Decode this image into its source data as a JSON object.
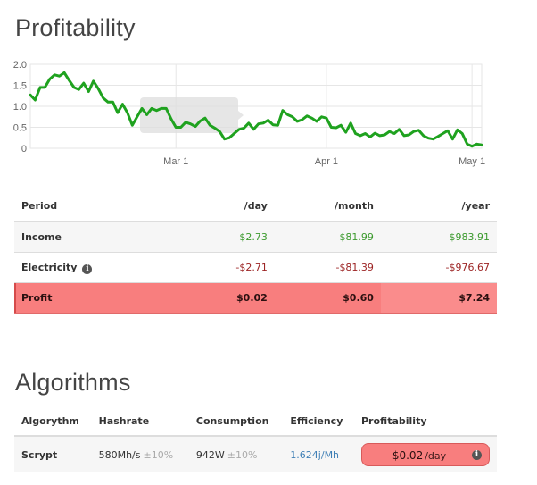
{
  "profitability": {
    "title": "Profitability",
    "chart_data": {
      "type": "line",
      "y_ticks": [
        "2.0",
        "1.5",
        "1.0",
        "0.5",
        "0"
      ],
      "ylim": [
        0,
        2.0
      ],
      "x_ticks": [
        "Mar 1",
        "Apr 1",
        "May 1"
      ],
      "x_tick_days": [
        30,
        61,
        91
      ],
      "xlim": [
        0,
        93
      ],
      "grid": true,
      "line_color": "#1fa21f",
      "series": [
        {
          "x": [
            0,
            1,
            2,
            3,
            4,
            5,
            6,
            7,
            8,
            9,
            10,
            11,
            12,
            13,
            14,
            15,
            16,
            17,
            18,
            19,
            20,
            21,
            22,
            23,
            24,
            25,
            26,
            27,
            28,
            29,
            30,
            31,
            32,
            33,
            34,
            35,
            36,
            37,
            38,
            39,
            40,
            41,
            42,
            43,
            44,
            45,
            46,
            47,
            48,
            49,
            50,
            51,
            52,
            53,
            54,
            55,
            56,
            57,
            58,
            59,
            60,
            61,
            62,
            63,
            64,
            65,
            66,
            67,
            68,
            69,
            70,
            71,
            72,
            73,
            74,
            75,
            76,
            77,
            78,
            79,
            80,
            81,
            82,
            83,
            84,
            85,
            86,
            87,
            88,
            89,
            90,
            91,
            92,
            93
          ],
          "values": [
            1.27,
            1.15,
            1.45,
            1.45,
            1.65,
            1.75,
            1.72,
            1.8,
            1.62,
            1.45,
            1.4,
            1.55,
            1.35,
            1.6,
            1.42,
            1.2,
            1.1,
            1.1,
            0.85,
            1.05,
            0.85,
            0.55,
            0.75,
            0.95,
            0.8,
            0.95,
            0.9,
            0.95,
            0.95,
            0.7,
            0.5,
            0.5,
            0.62,
            0.58,
            0.52,
            0.65,
            0.72,
            0.55,
            0.48,
            0.4,
            0.22,
            0.25,
            0.35,
            0.45,
            0.48,
            0.6,
            0.45,
            0.58,
            0.6,
            0.67,
            0.56,
            0.55,
            0.9,
            0.8,
            0.75,
            0.64,
            0.68,
            0.77,
            0.72,
            0.64,
            0.75,
            0.72,
            0.5,
            0.49,
            0.55,
            0.38,
            0.6,
            0.35,
            0.3,
            0.35,
            0.27,
            0.36,
            0.3,
            0.32,
            0.4,
            0.35,
            0.45,
            0.3,
            0.32,
            0.4,
            0.43,
            0.3,
            0.24,
            0.22,
            0.28,
            0.35,
            0.42,
            0.22,
            0.44,
            0.35,
            0.1,
            0.05,
            0.1,
            0.08
          ]
        }
      ]
    },
    "table": {
      "headers": [
        "Period",
        "/day",
        "/month",
        "/year"
      ],
      "rows": {
        "income": {
          "label": "Income",
          "day": "$2.73",
          "month": "$81.99",
          "year": "$983.91"
        },
        "electricity": {
          "label": "Electricity",
          "day": "-$2.71",
          "month": "-$81.39",
          "year": "-$976.67"
        },
        "profit": {
          "label": "Profit",
          "day": "$0.02",
          "month": "$0.60",
          "year": "$7.24"
        }
      }
    }
  },
  "algorithms": {
    "title": "Algorithms",
    "headers": [
      "Algorythm",
      "Hashrate",
      "Consumption",
      "Efficiency",
      "Profitability"
    ],
    "rows": [
      {
        "name": "Scrypt",
        "hashrate": "580Mh/s",
        "hashrate_tolerance": "±10%",
        "consumption": "942W",
        "consumption_tolerance": "±10%",
        "efficiency": "1.624j/Mh",
        "profit": "$0.02",
        "profit_unit": "/day"
      }
    ]
  },
  "icons": {
    "info": "info-icon",
    "info_glyph": "i"
  }
}
